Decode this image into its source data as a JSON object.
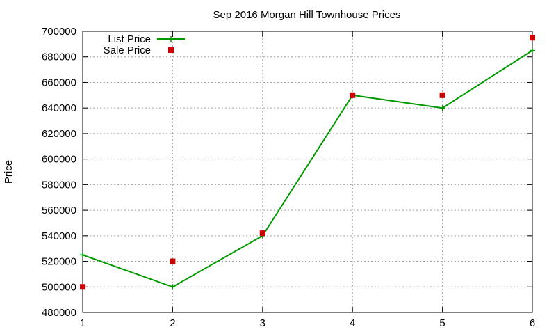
{
  "chart_data": {
    "type": "line",
    "title": "Sep 2016 Morgan Hill Townhouse Prices",
    "xlabel": "",
    "ylabel": "Price",
    "x": [
      1,
      2,
      3,
      4,
      5,
      6
    ],
    "xlim": [
      1,
      6
    ],
    "ylim": [
      480000,
      700000
    ],
    "ytick_step": 20000,
    "grid": true,
    "legend_position": "top-left",
    "series": [
      {
        "name": "List Price",
        "kind": "line-with-plus-markers",
        "color": "#009900",
        "values": [
          525000,
          500000,
          540000,
          650000,
          640000,
          685000
        ]
      },
      {
        "name": "Sale Price",
        "kind": "square-markers",
        "color": "#cc0000",
        "values": [
          500000,
          520000,
          542000,
          650000,
          650000,
          695000
        ]
      }
    ]
  }
}
